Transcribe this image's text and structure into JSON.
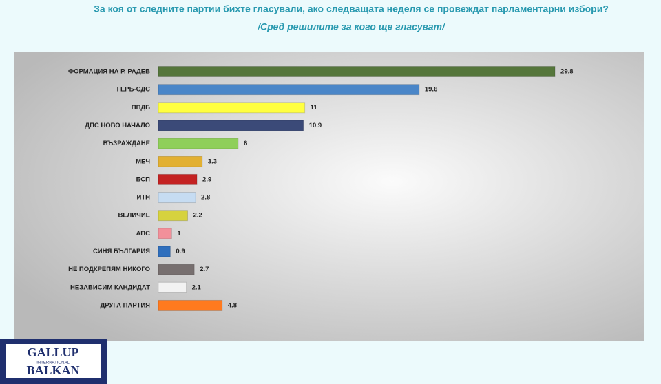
{
  "chart_data": {
    "type": "hbar",
    "title": "За коя от следните партии бихте гласували, ако следващата неделя се провеждат парламентарни избори?",
    "subtitle": "/Сред решилите за кого ще гласуват/",
    "categories": [
      "ФОРМАЦИЯ НА Р. РАДЕВ",
      "ГЕРБ-СДС",
      "ППДБ",
      "ДПС НОВО  НАЧАЛО",
      "ВЪЗРАЖДАНЕ",
      "МЕЧ",
      "БСП",
      "ИТН",
      "ВЕЛИЧИЕ",
      "АПС",
      "СИНЯ БЪЛГАРИЯ",
      "НЕ ПОДКРЕПЯМ НИКОГО",
      "НЕЗАВИСИМ КАНДИДАТ",
      "ДРУГА ПАРТИЯ"
    ],
    "values": [
      29.8,
      19.6,
      11,
      10.9,
      6,
      3.3,
      2.9,
      2.8,
      2.2,
      1,
      0.9,
      2.7,
      2.1,
      4.8
    ],
    "colors": [
      "#55763b",
      "#4a86c8",
      "#ffff40",
      "#3b4a78",
      "#8fcf5a",
      "#e2b032",
      "#c42222",
      "#c6dcf2",
      "#d6d23e",
      "#f2909a",
      "#2f6fbd",
      "#776f6f",
      "#f2f2f2",
      "#ff7a1e"
    ]
  },
  "logo": {
    "top": "GALLUP",
    "middle": "INTERNATIONAL",
    "bottom": "BALKAN"
  }
}
